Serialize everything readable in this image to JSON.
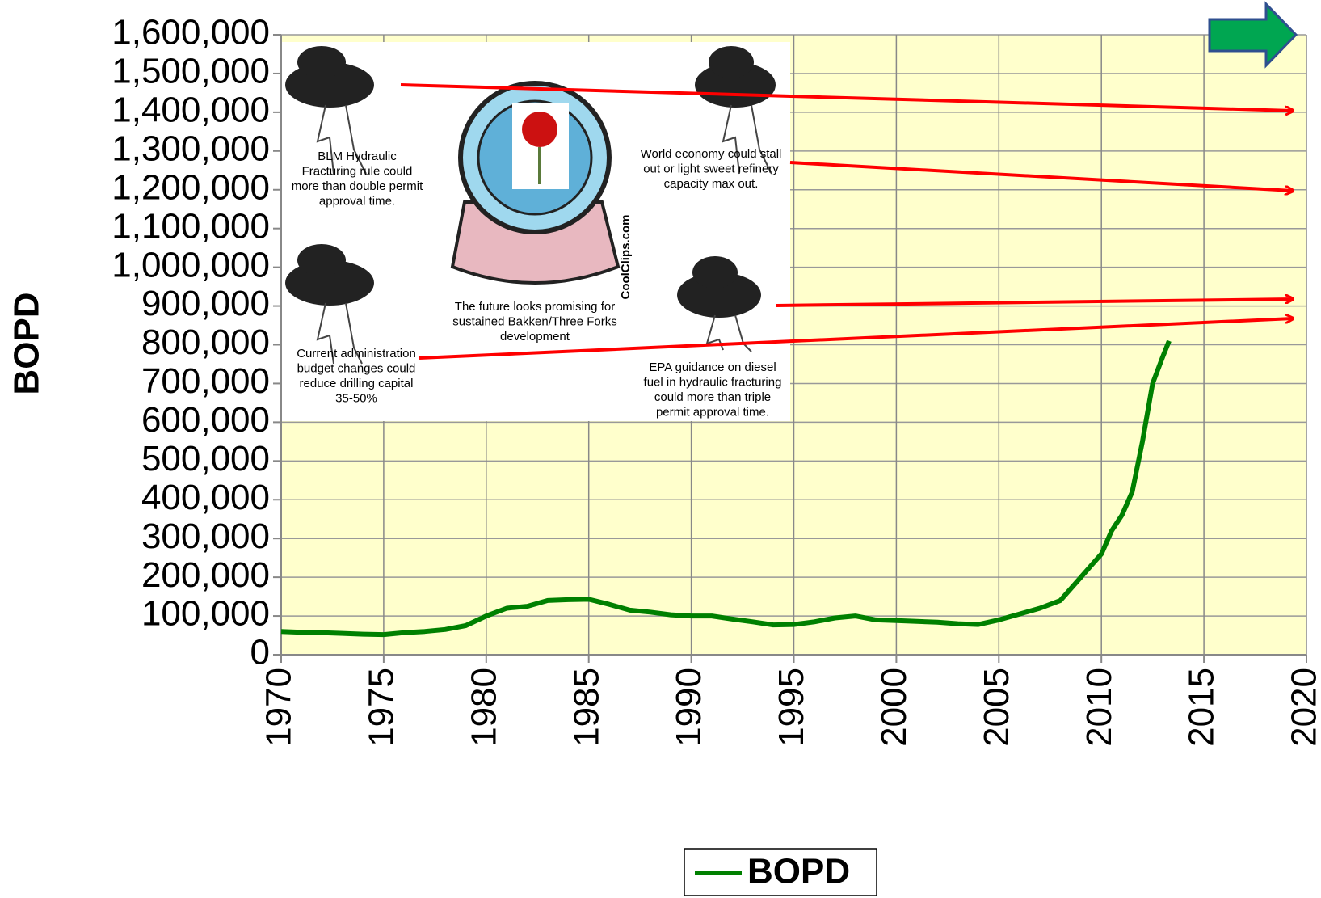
{
  "chart_data": {
    "type": "line",
    "ylabel": "BOPD",
    "x": [
      1970,
      1971,
      1972,
      1973,
      1974,
      1975,
      1976,
      1977,
      1978,
      1979,
      1980,
      1981,
      1982,
      1983,
      1984,
      1985,
      1986,
      1987,
      1988,
      1989,
      1990,
      1991,
      1992,
      1993,
      1994,
      1995,
      1996,
      1997,
      1998,
      1999,
      2000,
      2001,
      2002,
      2003,
      2004,
      2005,
      2006,
      2007,
      2008,
      2008.5,
      2009,
      2009.5,
      2010,
      2010.5,
      2011,
      2011.5,
      2012,
      2012.5,
      2013,
      2013.3
    ],
    "series": [
      {
        "name": "BOPD",
        "color": "#008000",
        "values": [
          60000,
          58000,
          57000,
          55000,
          53000,
          52000,
          57000,
          60000,
          65000,
          75000,
          100000,
          120000,
          125000,
          140000,
          142000,
          143000,
          130000,
          115000,
          110000,
          103000,
          100000,
          100000,
          92000,
          85000,
          77000,
          78000,
          85000,
          95000,
          100000,
          90000,
          88000,
          86000,
          84000,
          80000,
          78000,
          90000,
          105000,
          120000,
          140000,
          170000,
          200000,
          230000,
          260000,
          320000,
          360000,
          420000,
          550000,
          700000,
          770000,
          810000
        ]
      }
    ],
    "xlim": [
      1970,
      2020
    ],
    "xticks": [
      1970,
      1975,
      1980,
      1985,
      1990,
      1995,
      2000,
      2005,
      2010,
      2015,
      2020
    ],
    "ylim": [
      0,
      1600000
    ],
    "yticks": [
      0,
      {
        "value": 100000,
        "label": "100,000"
      },
      {
        "value": 200000,
        "label": "200,000"
      },
      {
        "value": 300000,
        "label": "300,000"
      },
      {
        "value": 400000,
        "label": "400,000"
      },
      {
        "value": 500000,
        "label": "500,000"
      },
      {
        "value": 600000,
        "label": "600,000"
      },
      {
        "value": 700000,
        "label": "700,000"
      },
      {
        "value": 800000,
        "label": "800,000"
      },
      {
        "value": 900000,
        "label": "900,000"
      },
      {
        "value": 1000000,
        "label": "1,000,000"
      },
      {
        "value": 1100000,
        "label": "1,100,000"
      },
      {
        "value": 1200000,
        "label": "1,200,000"
      },
      {
        "value": 1300000,
        "label": "1,300,000"
      },
      {
        "value": 1400000,
        "label": "1,400,000"
      },
      {
        "value": 1500000,
        "label": "1,500,000"
      },
      {
        "value": 1600000,
        "label": "1,600,000"
      }
    ],
    "grid": true,
    "legend": "bottom",
    "annotations": [
      [
        "BLM Hydraulic",
        "Fracturing rule could",
        "more than double permit",
        "approval time."
      ],
      [
        "World economy could stall",
        "out or light sweet refinery",
        "capacity max out."
      ],
      [
        "The future looks promising for",
        "sustained Bakken/Three Forks",
        "development"
      ],
      [
        "Current administration",
        "budget changes could",
        "reduce drilling capital",
        "35-50%"
      ],
      [
        "EPA guidance on diesel",
        "fuel in hydraulic fracturing",
        "could more than triple",
        "permit approval time."
      ],
      [
        "CoolClips.com"
      ]
    ]
  }
}
